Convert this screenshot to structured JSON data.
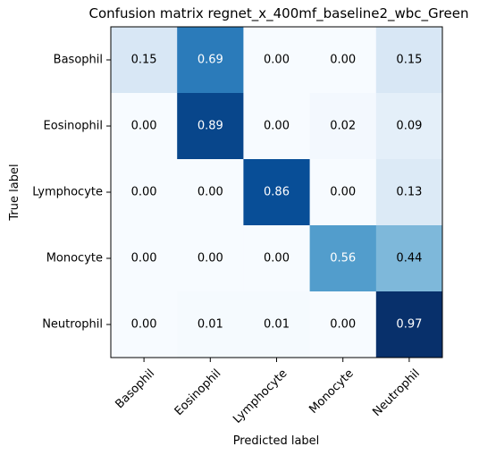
{
  "chart_data": {
    "type": "heatmap",
    "title": "Confusion matrix regnet_x_400mf_baseline2_wbc_Green",
    "xlabel": "Predicted label",
    "ylabel": "True label",
    "x_categories": [
      "Basophil",
      "Eosinophil",
      "Lymphocyte",
      "Monocyte",
      "Neutrophil"
    ],
    "y_categories": [
      "Basophil",
      "Eosinophil",
      "Lymphocyte",
      "Monocyte",
      "Neutrophil"
    ],
    "values": [
      [
        0.15,
        0.69,
        0.0,
        0.0,
        0.15
      ],
      [
        0.0,
        0.89,
        0.0,
        0.02,
        0.09
      ],
      [
        0.0,
        0.0,
        0.86,
        0.0,
        0.13
      ],
      [
        0.0,
        0.0,
        0.0,
        0.56,
        0.44
      ],
      [
        0.0,
        0.01,
        0.01,
        0.0,
        0.97
      ]
    ],
    "cell_labels": [
      [
        "0.15",
        "0.69",
        "0.00",
        "0.00",
        "0.15"
      ],
      [
        "0.00",
        "0.89",
        "0.00",
        "0.02",
        "0.09"
      ],
      [
        "0.00",
        "0.00",
        "0.86",
        "0.00",
        "0.13"
      ],
      [
        "0.00",
        "0.00",
        "0.00",
        "0.56",
        "0.44"
      ],
      [
        "0.00",
        "0.01",
        "0.01",
        "0.00",
        "0.97"
      ]
    ],
    "colormap": "Blues",
    "color_low": "#f7fbff",
    "color_high": "#08306b",
    "text_dark": "#000000",
    "text_light": "#ffffff",
    "x_tick_rotation_deg": 45,
    "grid": false,
    "legend": "none"
  }
}
